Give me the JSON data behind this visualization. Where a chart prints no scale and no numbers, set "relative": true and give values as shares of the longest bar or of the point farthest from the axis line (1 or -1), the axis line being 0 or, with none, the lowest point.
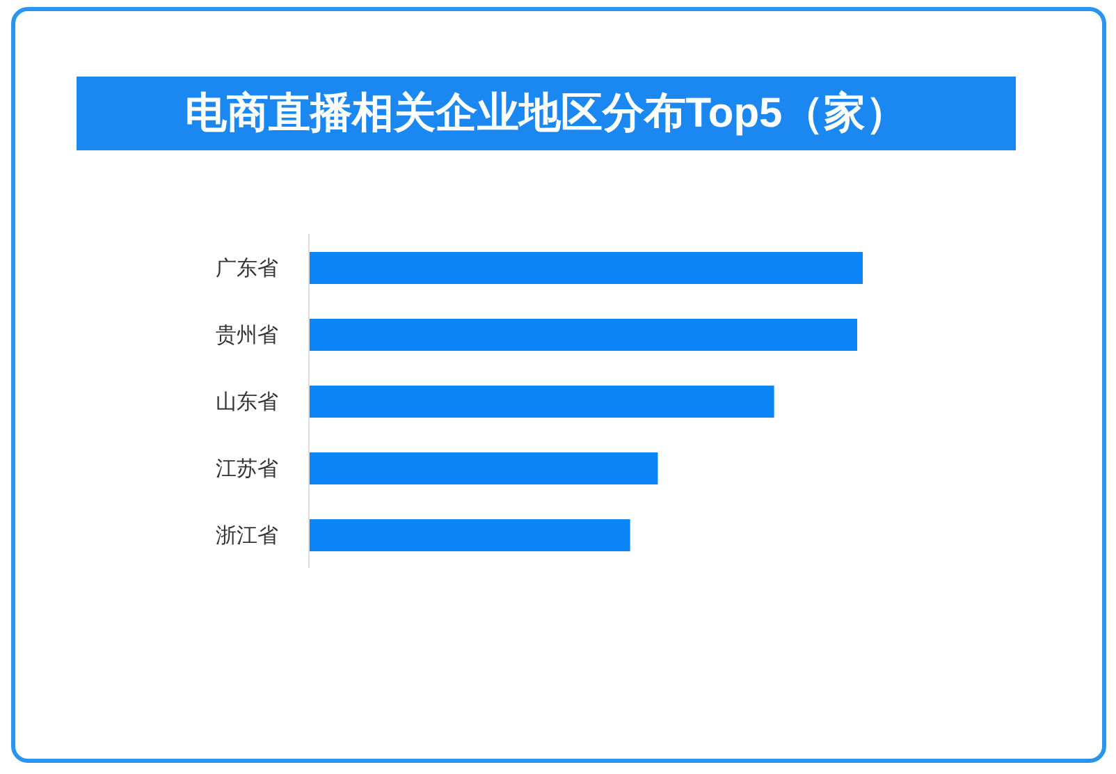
{
  "chart_data": {
    "type": "bar",
    "orientation": "horizontal",
    "relative": true,
    "title": "电商直播相关企业地区分布Top5（家）",
    "categories": [
      "广东省",
      "贵州省",
      "山东省",
      "江苏省",
      "浙江省"
    ],
    "values": [
      1,
      0.99,
      0.84,
      0.63,
      0.58
    ],
    "color": "#0b84f5"
  }
}
